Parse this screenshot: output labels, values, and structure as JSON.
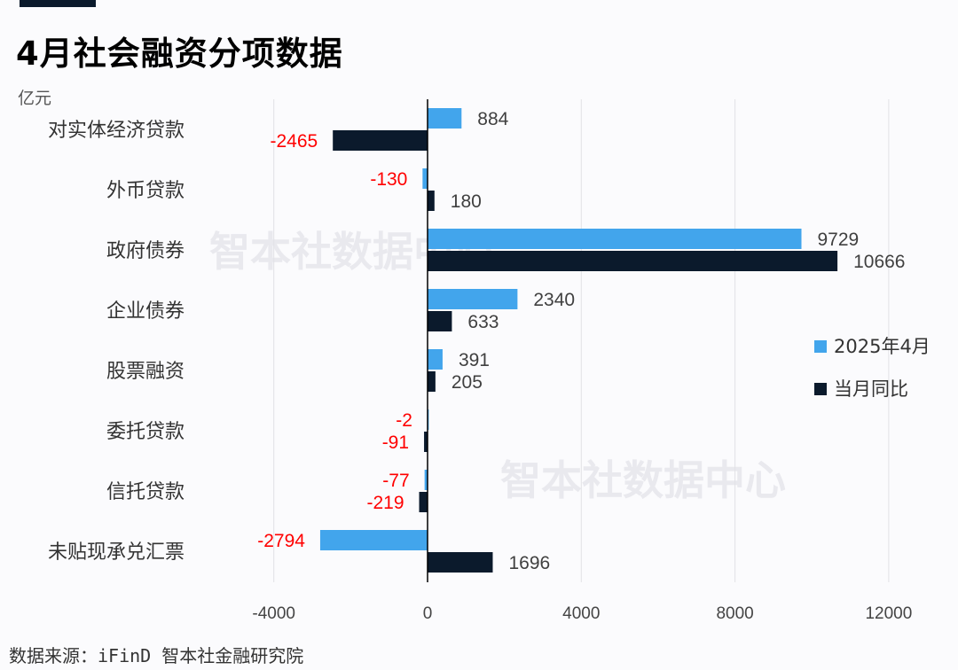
{
  "title": "4月社会融资分项数据",
  "unit": "亿元",
  "source": "数据来源：iFinD 智本社金融研究院",
  "watermark": "智本社数据中心",
  "chart_data": {
    "type": "bar",
    "orientation": "horizontal",
    "title": "4月社会融资分项数据",
    "xlabel": "",
    "ylabel": "亿元",
    "categories": [
      "对实体经济贷款",
      "外币贷款",
      "政府债券",
      "企业债券",
      "股票融资",
      "委托贷款",
      "信托贷款",
      "未贴现承兑汇票"
    ],
    "series": [
      {
        "name": "2025年4月",
        "color": "#42a5ec",
        "values": [
          884,
          -130,
          9729,
          2340,
          391,
          -2,
          -77,
          -2794
        ]
      },
      {
        "name": "当月同比",
        "color": "#0b1a2c",
        "values": [
          -2465,
          180,
          10666,
          633,
          205,
          -91,
          -219,
          1696
        ]
      }
    ],
    "xticks": [
      -4000,
      0,
      4000,
      8000,
      12000
    ],
    "xlim": [
      -5800,
      13000
    ],
    "grid": true,
    "legend_position": "right",
    "negative_label_color": "#ff0000",
    "positive_label_color": "#404040"
  }
}
